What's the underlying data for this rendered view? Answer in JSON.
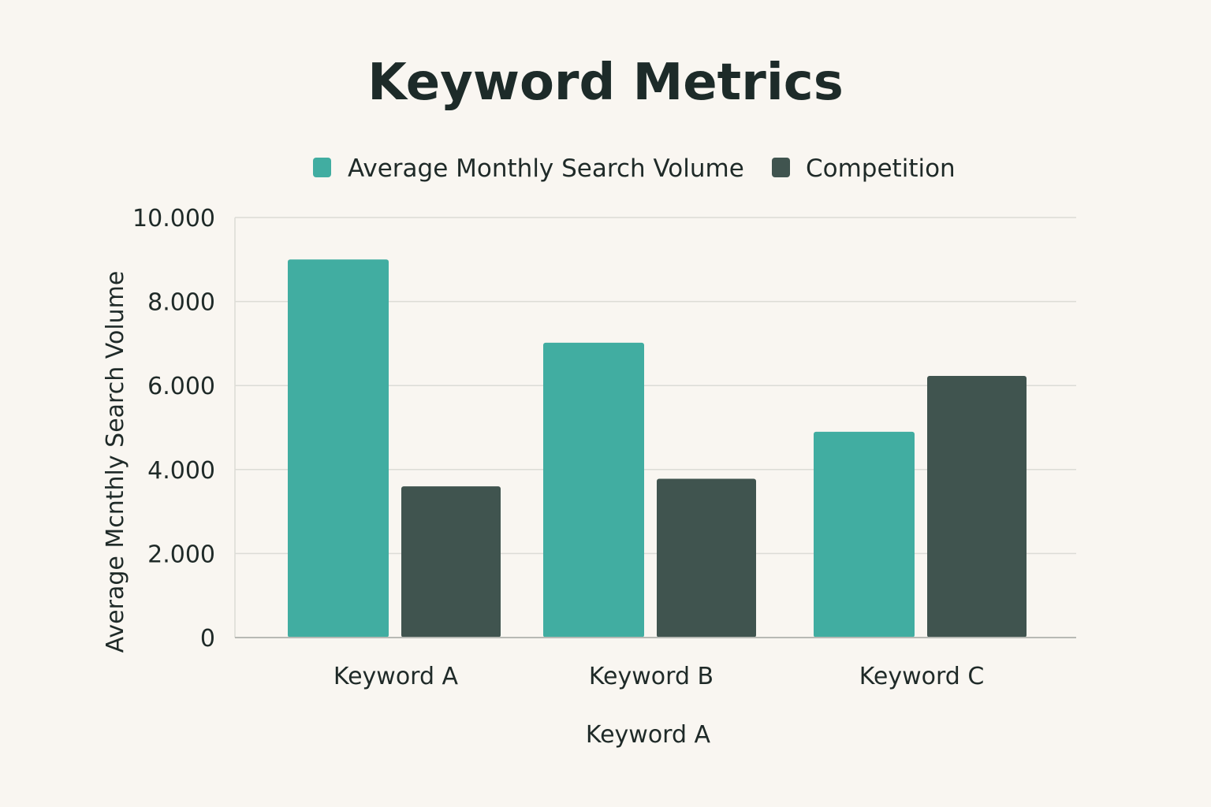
{
  "chart_data": {
    "type": "bar",
    "title": "Keyword Metrics",
    "categories": [
      "Keyword A",
      "Keyword B",
      "Keyword C"
    ],
    "series": [
      {
        "name": "Average Monthly Search Volume",
        "color": "#41ada1",
        "values": [
          9000,
          7020,
          4900
        ]
      },
      {
        "name": "Competition",
        "color": "#40544f",
        "values": [
          3600,
          3780,
          6230
        ]
      }
    ],
    "xlabel": "Keyword A",
    "ylabel": "Average Mcnthly Search Volume",
    "ylim": [
      0,
      10000
    ],
    "yticks": [
      0,
      2000,
      4000,
      6000,
      8000,
      10000
    ],
    "ytick_labels": [
      "0",
      "2.000",
      "4.000",
      "6.000",
      "8.000",
      "10.000"
    ],
    "grid": true,
    "legend_position": "top-center"
  }
}
